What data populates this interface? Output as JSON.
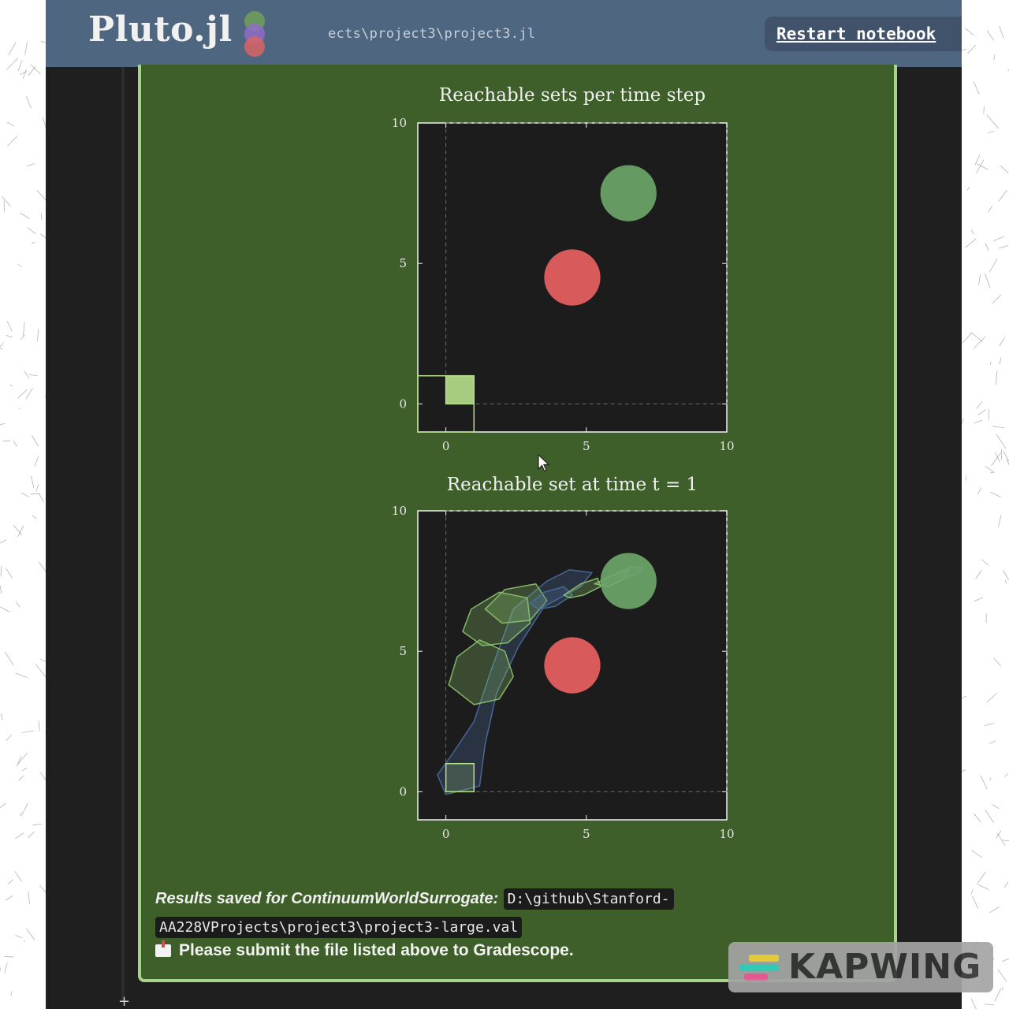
{
  "header": {
    "app_name_main": "Pluto",
    "app_name_ext": ".jl",
    "file_path": "ects\\project3\\project3.jl",
    "restart_label": "Restart notebook",
    "logo_dot_colors": [
      "#6fa05a",
      "#8f6cc8",
      "#d76464"
    ]
  },
  "cell": {
    "results_label": "Results saved for ContinuumWorldSurrogate:",
    "results_path_line1": "D:\\github\\Stanford-",
    "results_path_line2": "AA228VProjects\\project3\\project3-large.val",
    "submit_icon": "mailbox-icon",
    "submit_text": "Please submit the file listed above to Gradescope."
  },
  "watermark": {
    "text": "KAPWING"
  },
  "chart_data": [
    {
      "type": "scatter",
      "title": "Reachable sets per time step",
      "xlim": [
        -1,
        10
      ],
      "ylim": [
        -1,
        10
      ],
      "xticks": [
        0,
        5,
        10
      ],
      "yticks": [
        0,
        5,
        10
      ],
      "grid": false,
      "goal": {
        "x": 6.5,
        "y": 7.5,
        "color": "#6fa96b"
      },
      "obstacle": {
        "x": 4.5,
        "y": 4.5,
        "color": "#d95a5a"
      },
      "initial_set": {
        "x": [
          0,
          1
        ],
        "y": [
          0,
          1
        ],
        "color": "#b5e08c"
      },
      "reachable_sets": []
    },
    {
      "type": "scatter",
      "title": "Reachable set at time t = 1",
      "xlim": [
        -1,
        10
      ],
      "ylim": [
        -1,
        10
      ],
      "xticks": [
        0,
        5,
        10
      ],
      "yticks": [
        0,
        5,
        10
      ],
      "grid": false,
      "goal": {
        "x": 6.5,
        "y": 7.5,
        "color": "#6fa96b"
      },
      "obstacle": {
        "x": 4.5,
        "y": 4.5,
        "color": "#d95a5a"
      },
      "initial_set": {
        "x": [
          0,
          1
        ],
        "y": [
          0,
          1
        ],
        "color": "#b5e08c"
      },
      "reachable_sets": [
        {
          "polygon": [
            [
              -0.3,
              0.6
            ],
            [
              0.2,
              1.3
            ],
            [
              1.0,
              2.5
            ],
            [
              1.6,
              4.3
            ],
            [
              2.4,
              6.5
            ],
            [
              3.6,
              7.5
            ],
            [
              4.4,
              7.9
            ],
            [
              5.2,
              7.8
            ],
            [
              4.8,
              7.3
            ],
            [
              3.5,
              6.6
            ],
            [
              2.6,
              5.2
            ],
            [
              1.8,
              3.5
            ],
            [
              1.4,
              1.7
            ],
            [
              1.2,
              0.2
            ],
            [
              0.0,
              -0.1
            ]
          ],
          "color": "#4d6ea0"
        },
        {
          "polygon": [
            [
              0.1,
              3.8
            ],
            [
              0.4,
              4.8
            ],
            [
              1.2,
              5.4
            ],
            [
              2.1,
              5.0
            ],
            [
              2.4,
              4.1
            ],
            [
              1.9,
              3.3
            ],
            [
              1.0,
              3.1
            ]
          ],
          "color": "#8cc46c"
        },
        {
          "polygon": [
            [
              0.6,
              5.7
            ],
            [
              0.9,
              6.5
            ],
            [
              1.9,
              7.1
            ],
            [
              2.9,
              6.9
            ],
            [
              3.0,
              6.0
            ],
            [
              2.2,
              5.3
            ],
            [
              1.3,
              5.2
            ]
          ],
          "color": "#8cc46c"
        },
        {
          "polygon": [
            [
              1.4,
              6.5
            ],
            [
              2.1,
              7.2
            ],
            [
              3.2,
              7.4
            ],
            [
              3.6,
              6.8
            ],
            [
              3.0,
              6.1
            ],
            [
              2.0,
              6.0
            ]
          ],
          "color": "#8cc46c"
        },
        {
          "polygon": [
            [
              3.0,
              6.7
            ],
            [
              3.5,
              7.1
            ],
            [
              4.2,
              7.3
            ],
            [
              4.5,
              7.0
            ],
            [
              3.9,
              6.6
            ],
            [
              3.3,
              6.5
            ]
          ],
          "color": "#4d6ea0"
        },
        {
          "polygon": [
            [
              4.2,
              7.0
            ],
            [
              4.8,
              7.4
            ],
            [
              5.4,
              7.6
            ],
            [
              5.5,
              7.3
            ],
            [
              4.9,
              7.0
            ],
            [
              4.4,
              6.9
            ]
          ],
          "color": "#8cc46c"
        },
        {
          "polygon": [
            [
              5.3,
              7.4
            ],
            [
              5.9,
              7.7
            ],
            [
              6.5,
              7.9
            ],
            [
              6.4,
              7.6
            ],
            [
              5.8,
              7.3
            ]
          ],
          "color": "#8cc46c"
        },
        {
          "polygon": [
            [
              6.1,
              7.8
            ],
            [
              6.6,
              8.0
            ],
            [
              7.0,
              8.0
            ],
            [
              6.9,
              7.8
            ],
            [
              6.4,
              7.6
            ]
          ],
          "color": "#4d6ea0"
        }
      ]
    }
  ]
}
